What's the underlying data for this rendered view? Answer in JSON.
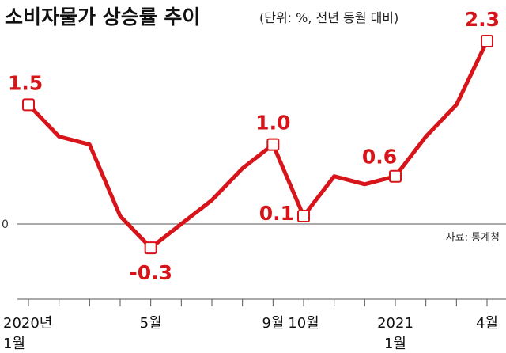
{
  "colors": {
    "line": "#d7141a",
    "marker_fill": "#ffffff",
    "marker_stroke": "#d7141a",
    "axis": "#555555",
    "text": "#111111"
  },
  "chart_data": {
    "type": "line",
    "title": "소비자물가 상승률 추이",
    "subtitle": "(단위: %, 전년 동월 대비)",
    "source": "자료: 통계청",
    "y_unit": "%",
    "ylim": [
      -0.65,
      2.6
    ],
    "y_ticks": [
      {
        "value": 0,
        "label": "0"
      }
    ],
    "grid": false,
    "legend": "none",
    "x_ticks": [
      {
        "label": "2020년",
        "label2": "1월"
      },
      {
        "label": "",
        "label2": ""
      },
      {
        "label": "",
        "label2": ""
      },
      {
        "label": "",
        "label2": ""
      },
      {
        "label": "5월",
        "label2": ""
      },
      {
        "label": "",
        "label2": ""
      },
      {
        "label": "",
        "label2": ""
      },
      {
        "label": "",
        "label2": ""
      },
      {
        "label": "9월",
        "label2": ""
      },
      {
        "label": "10월",
        "label2": ""
      },
      {
        "label": "",
        "label2": ""
      },
      {
        "label": "",
        "label2": ""
      },
      {
        "label": "2021",
        "label2": "1월"
      },
      {
        "label": "",
        "label2": ""
      },
      {
        "label": "",
        "label2": ""
      },
      {
        "label": "4월",
        "label2": ""
      }
    ],
    "series": [
      {
        "values": [
          1.5,
          1.1,
          1.0,
          0.1,
          -0.3,
          0.0,
          0.3,
          0.7,
          1.0,
          0.1,
          0.6,
          0.5,
          0.6,
          1.1,
          1.5,
          2.3
        ],
        "markers": [
          0,
          4,
          8,
          9,
          12,
          15
        ],
        "labels": [
          {
            "index": 0,
            "text": "1.5",
            "pos": "above"
          },
          {
            "index": 4,
            "text": "-0.3",
            "pos": "below"
          },
          {
            "index": 8,
            "text": "1.0",
            "pos": "above"
          },
          {
            "index": 9,
            "text": "0.1",
            "pos": "left"
          },
          {
            "index": 12,
            "text": "0.6",
            "pos": "above-left"
          },
          {
            "index": 15,
            "text": "2.3",
            "pos": "above"
          }
        ]
      }
    ]
  }
}
